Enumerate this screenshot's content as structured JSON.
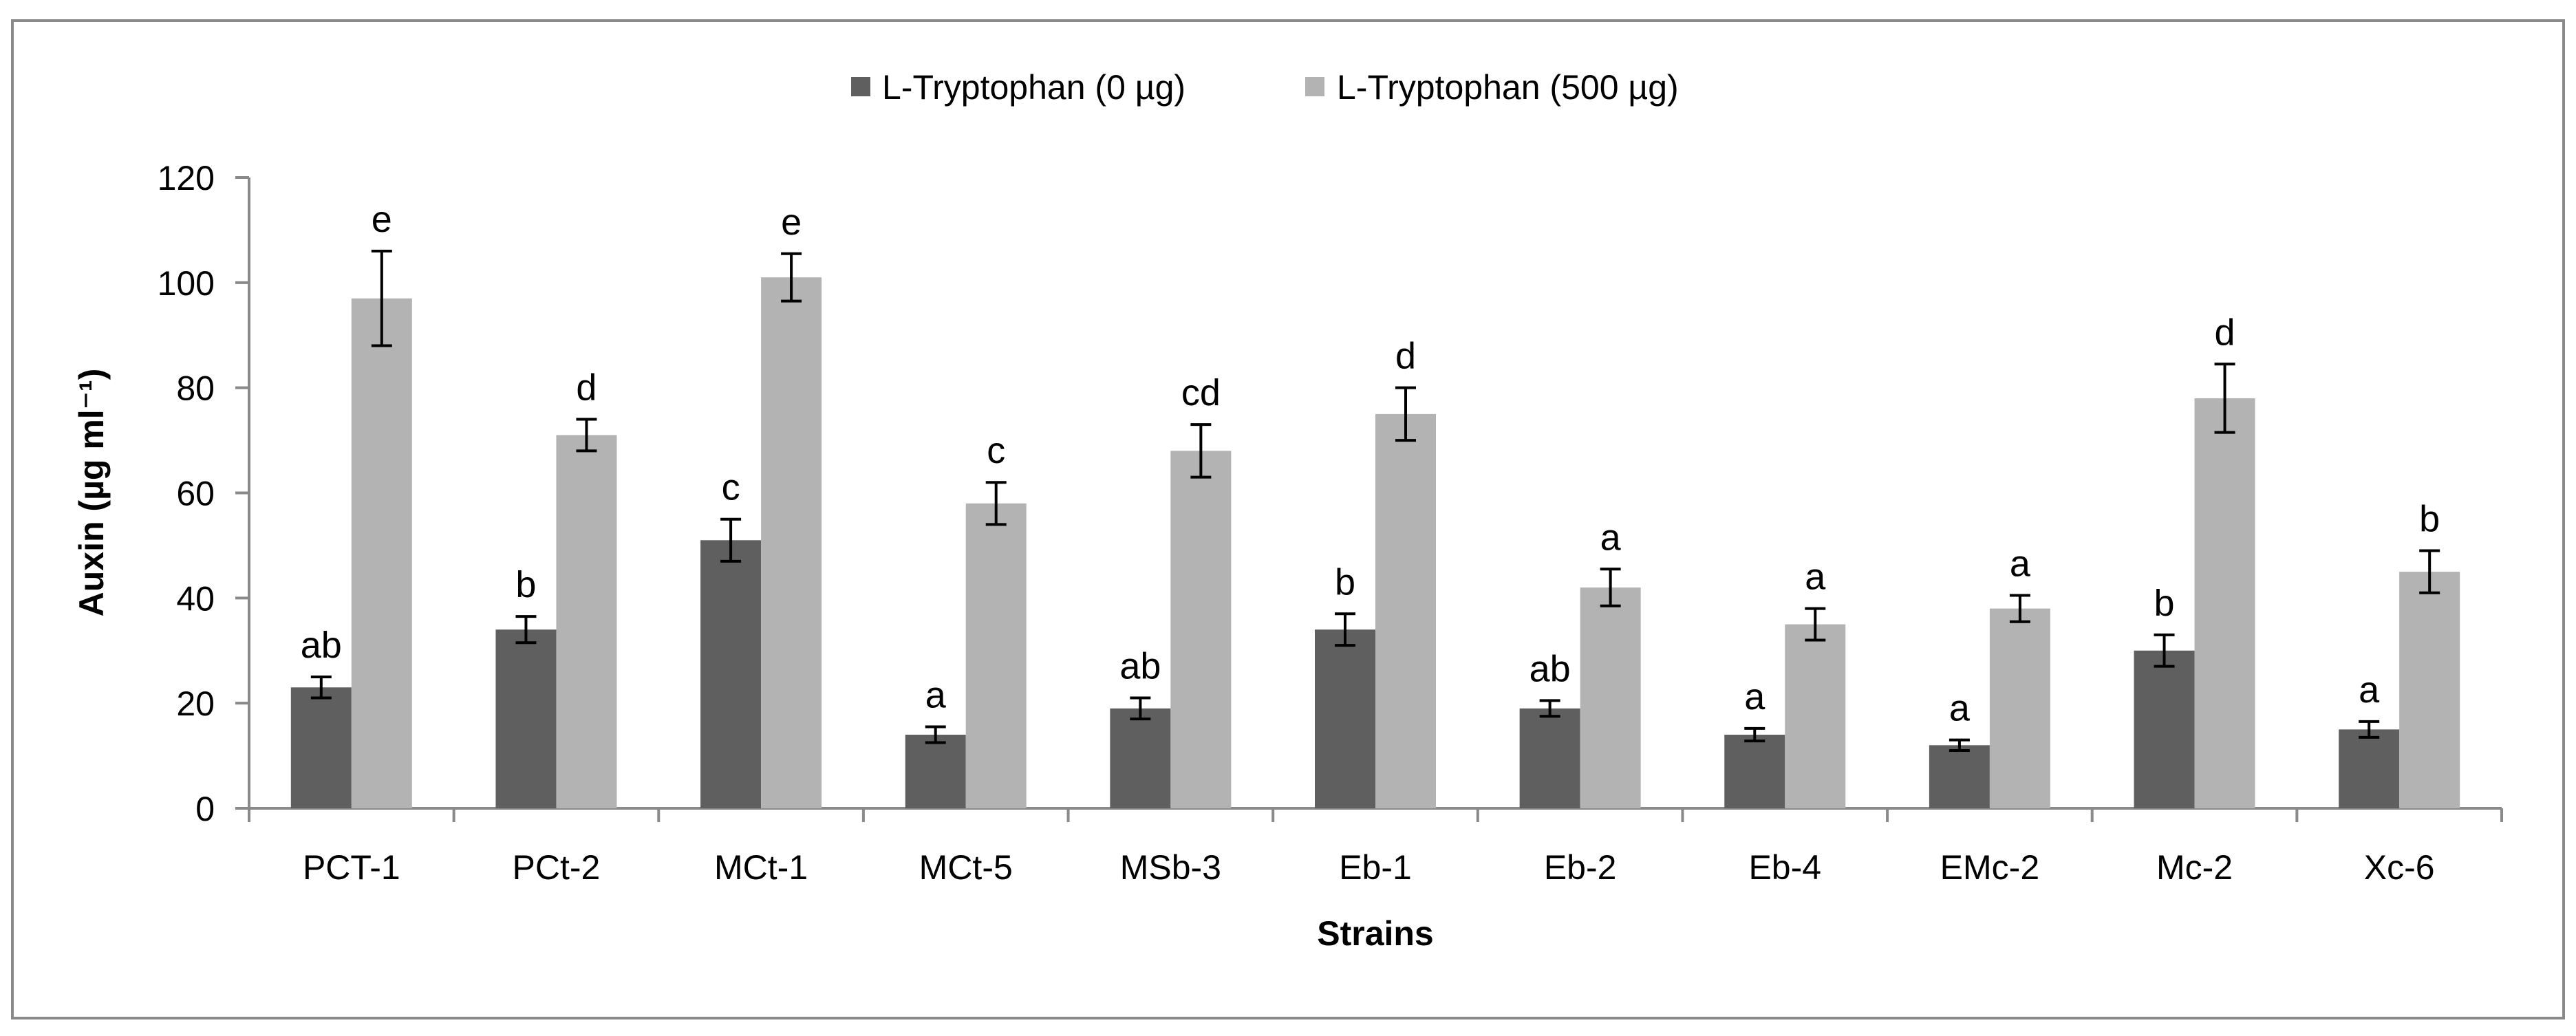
{
  "chart_data": {
    "type": "bar",
    "title": "",
    "xlabel": "Strains",
    "ylabel": "Auxin (µg ml⁻¹)",
    "categories": [
      "PCT-1",
      "PCt-2",
      "MCt-1",
      "MCt-5",
      "MSb-3",
      "Eb-1",
      "Eb-2",
      "Eb-4",
      "EMc-2",
      "Mc-2",
      "Xc-6"
    ],
    "ylim": [
      0,
      120
    ],
    "yticks": [
      0,
      20,
      40,
      60,
      80,
      100,
      120
    ],
    "grid": false,
    "legend_position": "top-center",
    "series": [
      {
        "name": "L-Tryptophan (0 µg)",
        "color": "#5f5f5f",
        "values": [
          23,
          34,
          51,
          14,
          19,
          34,
          19,
          14,
          12,
          30,
          15
        ],
        "errors": [
          2,
          2.5,
          4,
          1.5,
          2,
          3,
          1.5,
          1.2,
          1,
          3,
          1.5
        ],
        "letters": [
          "ab",
          "b",
          "c",
          "a",
          "ab",
          "b",
          "ab",
          "a",
          "a",
          "b",
          "a"
        ]
      },
      {
        "name": "L-Tryptophan (500 µg)",
        "color": "#b3b3b3",
        "values": [
          97,
          71,
          101,
          58,
          68,
          75,
          42,
          35,
          38,
          78,
          45
        ],
        "errors": [
          9,
          3,
          4.5,
          4,
          5,
          5,
          3.5,
          3,
          2.5,
          6.5,
          4
        ],
        "letters": [
          "e",
          "d",
          "e",
          "c",
          "cd",
          "d",
          "a",
          "a",
          "a",
          "d",
          "b"
        ]
      }
    ]
  }
}
